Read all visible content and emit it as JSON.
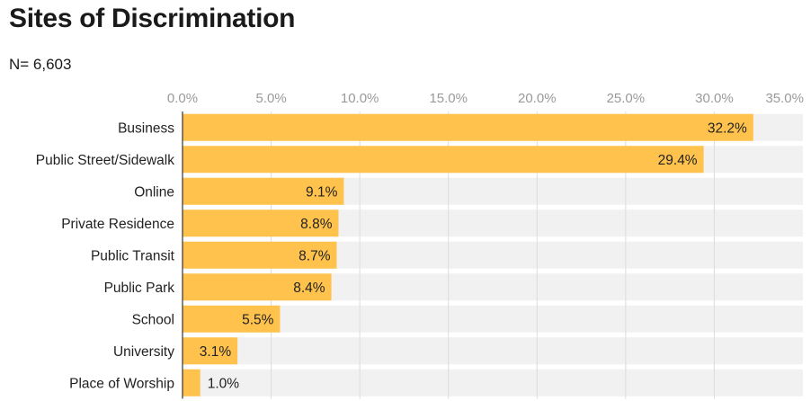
{
  "title": "Sites of Discrimination",
  "subtitle": "N= 6,603",
  "colors": {
    "bar": "#FFC34D",
    "track": "#F1F1F1",
    "grid": "#DCDCDC",
    "axis": "#333333"
  },
  "chart_data": {
    "type": "bar",
    "orientation": "horizontal",
    "title": "Sites of Discrimination",
    "subtitle": "N= 6,603",
    "categories": [
      "Business",
      "Public Street/Sidewalk",
      "Online",
      "Private Residence",
      "Public Transit",
      "Public Park",
      "School",
      "University",
      "Place of Worship"
    ],
    "values": [
      32.2,
      29.4,
      9.1,
      8.8,
      8.7,
      8.4,
      5.5,
      3.1,
      1.0
    ],
    "value_labels": [
      "32.2%",
      "29.4%",
      "9.1%",
      "8.8%",
      "8.7%",
      "8.4%",
      "5.5%",
      "3.1%",
      "1.0%"
    ],
    "xlim": [
      0,
      35
    ],
    "xticks": [
      0,
      5,
      10,
      15,
      20,
      25,
      30,
      35
    ],
    "xtick_labels": [
      "0.0%",
      "5.0%",
      "10.0%",
      "15.0%",
      "20.0%",
      "25.0%",
      "30.0%",
      "35.0%"
    ],
    "xaxis_position": "top",
    "grid": true,
    "legend": "none"
  }
}
